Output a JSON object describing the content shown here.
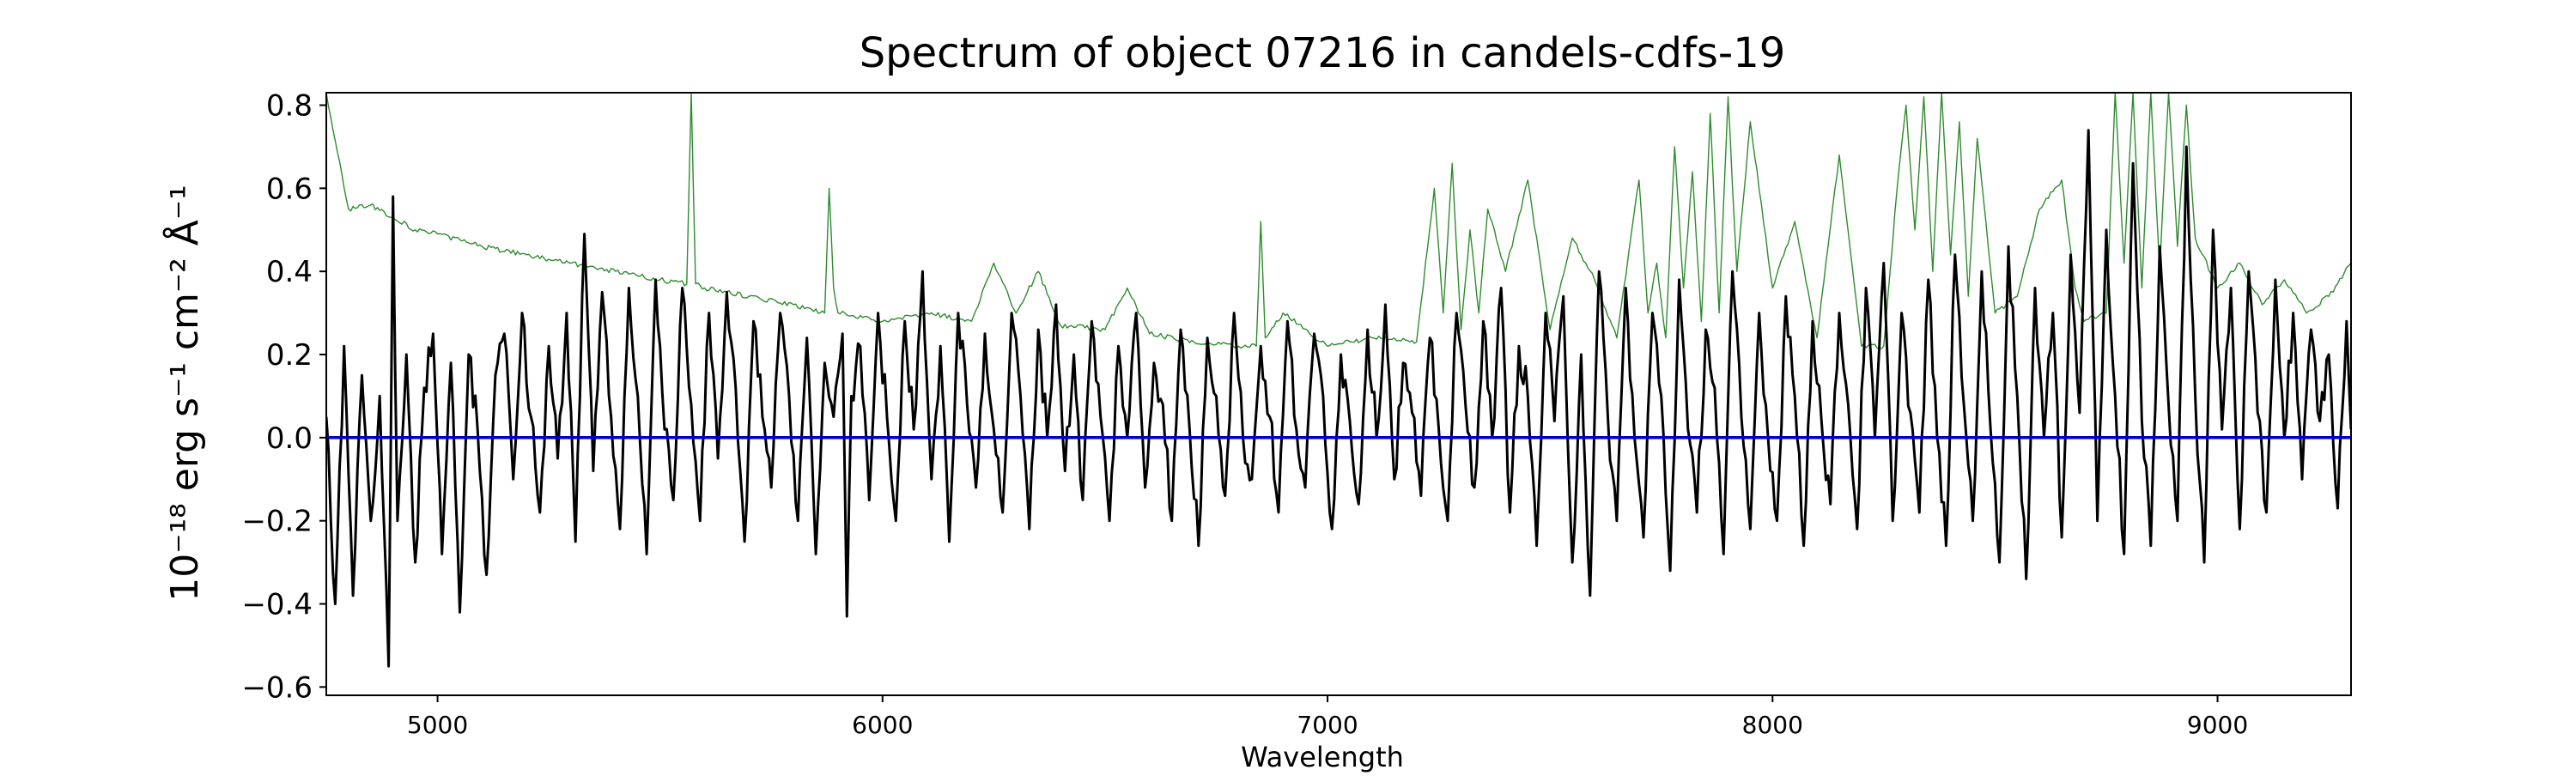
{
  "chart_data": {
    "type": "line",
    "title": "Spectrum of object 07216 in candels-cdfs-19",
    "xlabel": "Wavelength",
    "ylabel": "10⁻¹⁸ erg s⁻¹ cm⁻² Å⁻¹",
    "xlim": [
      4750,
      9300
    ],
    "ylim": [
      -0.62,
      0.83
    ],
    "grid": false,
    "xticks": [
      {
        "value": 5000,
        "label": "5000"
      },
      {
        "value": 6000,
        "label": "6000"
      },
      {
        "value": 7000,
        "label": "7000"
      },
      {
        "value": 8000,
        "label": "8000"
      },
      {
        "value": 9000,
        "label": "9000"
      }
    ],
    "yticks": [
      {
        "value": -0.6,
        "label": "−0.6"
      },
      {
        "value": -0.4,
        "label": "−0.4"
      },
      {
        "value": -0.2,
        "label": "−0.2"
      },
      {
        "value": 0.0,
        "label": "0.0"
      },
      {
        "value": 0.2,
        "label": "0.2"
      },
      {
        "value": 0.4,
        "label": "0.4"
      },
      {
        "value": 0.6,
        "label": "0.6"
      },
      {
        "value": 0.8,
        "label": "0.8"
      }
    ],
    "series": [
      {
        "color": "#2e8b2e",
        "sampled": true,
        "x": [
          4750,
          4800,
          4850,
          4900,
          4950,
          5000,
          5100,
          5200,
          5300,
          5400,
          5500,
          5560,
          5570,
          5580,
          5600,
          5700,
          5800,
          5870,
          5880,
          5890,
          5900,
          6000,
          6100,
          6200,
          6250,
          6300,
          6350,
          6400,
          6500,
          6550,
          6600,
          6700,
          6800,
          6840,
          6850,
          6860,
          6900,
          7000,
          7100,
          7200,
          7240,
          7260,
          7280,
          7300,
          7320,
          7340,
          7360,
          7400,
          7450,
          7500,
          7550,
          7600,
          7650,
          7700,
          7720,
          7740,
          7760,
          7780,
          7800,
          7820,
          7840,
          7860,
          7880,
          7900,
          7920,
          7950,
          8000,
          8050,
          8100,
          8150,
          8200,
          8250,
          8280,
          8300,
          8320,
          8340,
          8360,
          8380,
          8400,
          8420,
          8440,
          8460,
          8500,
          8550,
          8600,
          8650,
          8680,
          8700,
          8750,
          8770,
          8790,
          8810,
          8830,
          8850,
          8870,
          8890,
          8910,
          8930,
          8950,
          9000,
          9050,
          9100,
          9150,
          9200,
          9250,
          9300
        ],
        "y": [
          0.83,
          0.55,
          0.56,
          0.53,
          0.5,
          0.49,
          0.46,
          0.44,
          0.42,
          0.4,
          0.38,
          0.37,
          0.83,
          0.37,
          0.36,
          0.34,
          0.32,
          0.3,
          0.6,
          0.36,
          0.3,
          0.28,
          0.3,
          0.28,
          0.42,
          0.3,
          0.4,
          0.27,
          0.26,
          0.36,
          0.25,
          0.23,
          0.22,
          0.22,
          0.52,
          0.24,
          0.3,
          0.22,
          0.24,
          0.23,
          0.6,
          0.3,
          0.66,
          0.26,
          0.5,
          0.3,
          0.55,
          0.4,
          0.62,
          0.26,
          0.48,
          0.38,
          0.24,
          0.62,
          0.3,
          0.42,
          0.24,
          0.7,
          0.36,
          0.64,
          0.28,
          0.78,
          0.3,
          0.82,
          0.4,
          0.76,
          0.36,
          0.52,
          0.24,
          0.68,
          0.22,
          0.22,
          0.6,
          0.8,
          0.5,
          0.82,
          0.4,
          0.83,
          0.44,
          0.76,
          0.34,
          0.72,
          0.3,
          0.34,
          0.55,
          0.62,
          0.36,
          0.28,
          0.3,
          0.83,
          0.42,
          0.83,
          0.36,
          0.83,
          0.4,
          0.83,
          0.46,
          0.8,
          0.48,
          0.36,
          0.42,
          0.32,
          0.38,
          0.3,
          0.34,
          0.42
        ]
      },
      {
        "color": "#000000",
        "sampled": true,
        "x": [
          4750,
          4770,
          4790,
          4810,
          4830,
          4850,
          4870,
          4890,
          4900,
          4910,
          4930,
          4950,
          4970,
          4990,
          5010,
          5030,
          5050,
          5070,
          5090,
          5110,
          5130,
          5150,
          5170,
          5190,
          5210,
          5230,
          5250,
          5270,
          5290,
          5310,
          5330,
          5350,
          5370,
          5390,
          5410,
          5430,
          5450,
          5470,
          5490,
          5510,
          5530,
          5550,
          5570,
          5590,
          5610,
          5630,
          5650,
          5670,
          5690,
          5710,
          5730,
          5750,
          5770,
          5790,
          5810,
          5830,
          5850,
          5870,
          5890,
          5910,
          5920,
          5930,
          5950,
          5970,
          5990,
          6010,
          6030,
          6050,
          6070,
          6090,
          6110,
          6130,
          6150,
          6170,
          6190,
          6210,
          6230,
          6250,
          6270,
          6290,
          6310,
          6330,
          6350,
          6370,
          6390,
          6410,
          6430,
          6450,
          6470,
          6490,
          6510,
          6530,
          6550,
          6570,
          6590,
          6610,
          6630,
          6650,
          6670,
          6690,
          6710,
          6730,
          6750,
          6770,
          6790,
          6810,
          6830,
          6850,
          6870,
          6890,
          6910,
          6930,
          6950,
          6970,
          6990,
          7010,
          7030,
          7050,
          7070,
          7090,
          7110,
          7130,
          7150,
          7170,
          7190,
          7210,
          7230,
          7250,
          7270,
          7290,
          7310,
          7330,
          7350,
          7370,
          7390,
          7410,
          7430,
          7450,
          7470,
          7490,
          7510,
          7530,
          7550,
          7570,
          7590,
          7610,
          7630,
          7650,
          7670,
          7690,
          7710,
          7730,
          7750,
          7770,
          7790,
          7810,
          7830,
          7850,
          7870,
          7890,
          7910,
          7930,
          7950,
          7970,
          7990,
          8010,
          8030,
          8050,
          8070,
          8090,
          8110,
          8130,
          8150,
          8170,
          8190,
          8210,
          8230,
          8250,
          8270,
          8290,
          8310,
          8330,
          8350,
          8370,
          8390,
          8410,
          8430,
          8450,
          8470,
          8490,
          8510,
          8530,
          8550,
          8570,
          8590,
          8610,
          8630,
          8650,
          8670,
          8690,
          8710,
          8730,
          8750,
          8770,
          8790,
          8810,
          8830,
          8850,
          8870,
          8890,
          8910,
          8930,
          8950,
          8970,
          8990,
          9010,
          9030,
          9050,
          9070,
          9090,
          9110,
          9130,
          9150,
          9170,
          9190,
          9210,
          9230,
          9250,
          9270,
          9290,
          9300
        ],
        "y": [
          0.05,
          -0.4,
          0.22,
          -0.38,
          0.15,
          -0.2,
          0.1,
          -0.55,
          0.58,
          -0.2,
          0.2,
          -0.3,
          0.12,
          0.25,
          -0.28,
          0.18,
          -0.42,
          0.2,
          0.02,
          -0.33,
          0.15,
          0.25,
          -0.1,
          0.3,
          0.05,
          -0.18,
          0.22,
          -0.05,
          0.3,
          -0.25,
          0.49,
          -0.08,
          0.35,
          0.05,
          -0.22,
          0.36,
          0.1,
          -0.28,
          0.38,
          0.02,
          -0.15,
          0.36,
          0.08,
          -0.2,
          0.3,
          -0.05,
          0.35,
          0.12,
          -0.25,
          0.28,
          0.05,
          -0.12,
          0.3,
          0.1,
          -0.2,
          0.24,
          -0.28,
          0.18,
          0.05,
          0.25,
          -0.43,
          0.1,
          0.22,
          -0.15,
          0.3,
          0.05,
          -0.2,
          0.28,
          0.02,
          0.4,
          -0.1,
          0.22,
          -0.25,
          0.3,
          0.08,
          -0.12,
          0.25,
          0.02,
          -0.18,
          0.3,
          0.1,
          -0.22,
          0.26,
          0.0,
          0.32,
          -0.08,
          0.2,
          -0.15,
          0.28,
          0.05,
          -0.2,
          0.22,
          0.0,
          0.3,
          -0.12,
          0.18,
          0.08,
          -0.2,
          0.26,
          0.02,
          -0.26,
          0.24,
          0.1,
          -0.14,
          0.3,
          0.0,
          -0.1,
          0.22,
          0.05,
          -0.18,
          0.28,
          0.02,
          -0.12,
          0.25,
          0.1,
          -0.22,
          0.2,
          0.04,
          -0.16,
          0.26,
          0.0,
          0.32,
          -0.1,
          0.18,
          0.06,
          -0.14,
          0.24,
          0.02,
          -0.2,
          0.3,
          0.08,
          -0.12,
          0.28,
          0.0,
          0.36,
          -0.18,
          0.22,
          0.1,
          -0.26,
          0.3,
          0.04,
          0.34,
          -0.3,
          0.2,
          -0.38,
          0.4,
          0.05,
          -0.2,
          0.36,
          0.0,
          -0.24,
          0.3,
          0.1,
          -0.32,
          0.38,
          0.02,
          -0.18,
          0.26,
          0.12,
          -0.28,
          0.4,
          0.05,
          -0.22,
          0.3,
          0.0,
          -0.2,
          0.34,
          0.1,
          -0.26,
          0.28,
          0.04,
          -0.16,
          0.3,
          0.08,
          -0.22,
          0.36,
          0.0,
          0.42,
          -0.2,
          0.3,
          0.06,
          -0.18,
          0.38,
          0.0,
          -0.26,
          0.44,
          0.08,
          -0.2,
          0.4,
          0.02,
          -0.3,
          0.46,
          0.1,
          -0.34,
          0.36,
          0.0,
          0.3,
          -0.24,
          0.44,
          0.06,
          0.74,
          -0.2,
          0.5,
          0.1,
          -0.28,
          0.66,
          0.04,
          -0.26,
          0.46,
          0.08,
          -0.2,
          0.7,
          0.1,
          -0.3,
          0.5,
          0.02,
          0.36,
          -0.22,
          0.4,
          0.06,
          -0.18,
          0.38,
          0.0,
          0.3,
          -0.1,
          0.26,
          0.04,
          0.2,
          -0.17,
          0.28,
          0.02
        ]
      },
      {
        "color": "#0000cc",
        "x": [
          4750,
          9300
        ],
        "y": [
          0.0,
          0.0
        ]
      }
    ]
  }
}
